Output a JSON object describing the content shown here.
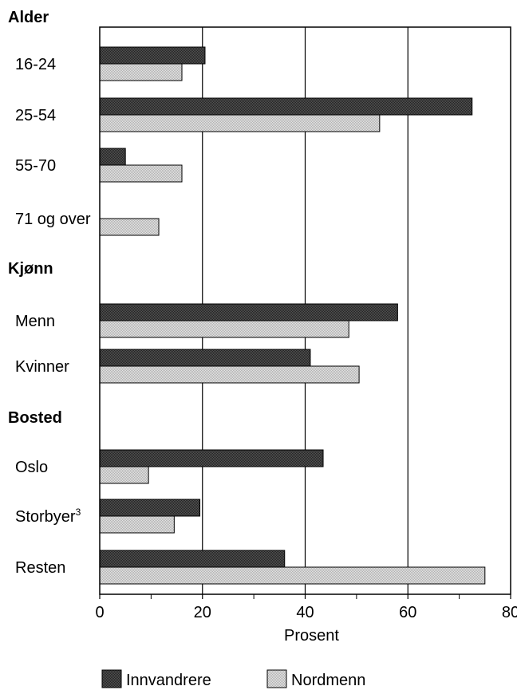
{
  "chart_data": {
    "type": "bar",
    "orientation": "horizontal",
    "xlabel": "Prosent",
    "xlim": [
      0,
      80
    ],
    "xticks": [
      "0",
      "20",
      "40",
      "60",
      "80"
    ],
    "grid": true,
    "legend_placement": "bottom",
    "groups": [
      {
        "heading": "Alder",
        "categories": [
          "16-24",
          "25-54",
          "55-70",
          "71 og over"
        ]
      },
      {
        "heading": "Kjønn",
        "categories": [
          "Menn",
          "Kvinner"
        ]
      },
      {
        "heading": "Bosted",
        "categories": [
          "Oslo",
          "Storbyer",
          "Resten"
        ]
      }
    ],
    "footnote_marks": {
      "Storbyer": "3"
    },
    "series": [
      {
        "name": "Innvandrere",
        "color": "#3a3a3a",
        "values": [
          20.5,
          72.5,
          5,
          null,
          58,
          41,
          43.5,
          19.5,
          36
        ]
      },
      {
        "name": "Nordmenn",
        "color": "#d4d4d4",
        "values": [
          16,
          54.5,
          16,
          11.5,
          48.5,
          50.5,
          9.5,
          14.5,
          75
        ]
      }
    ]
  }
}
